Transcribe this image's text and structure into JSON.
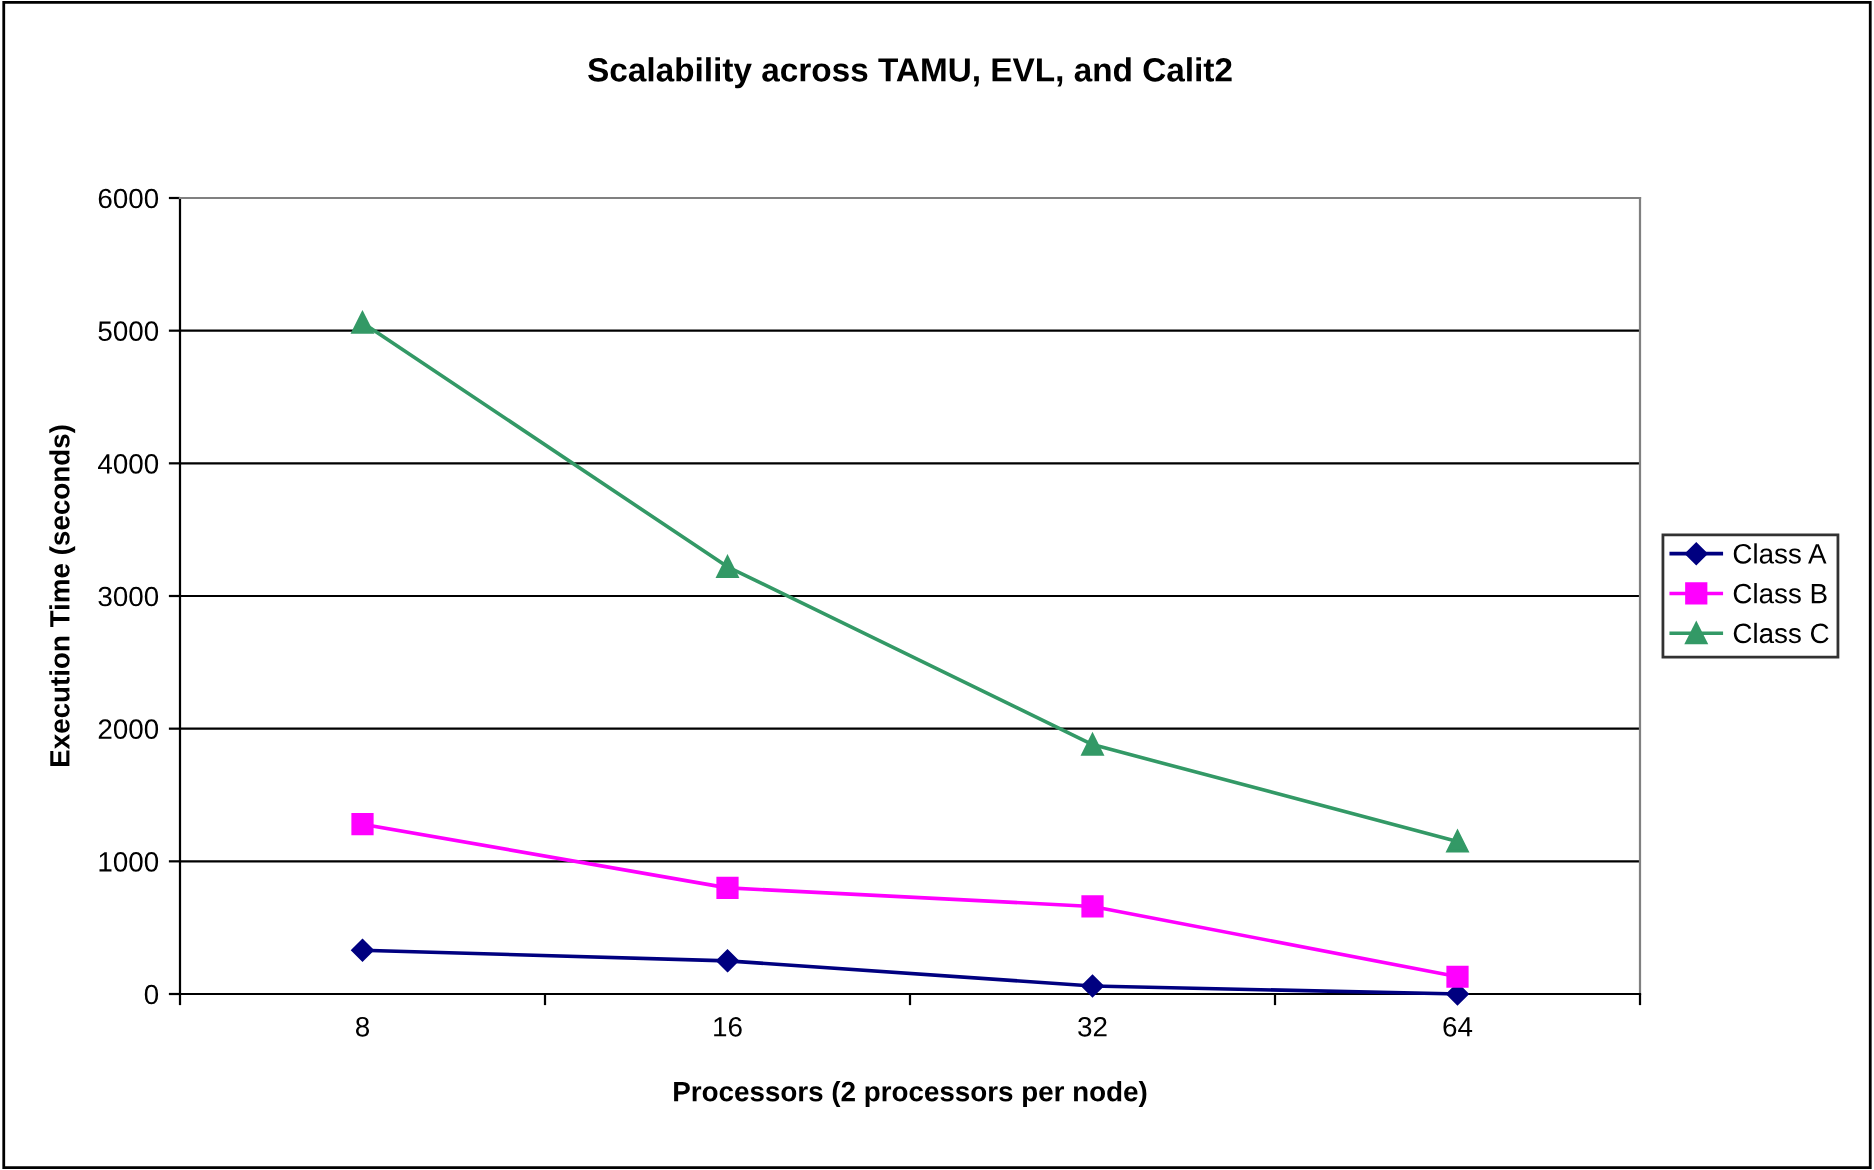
{
  "chart_data": {
    "type": "line",
    "title": "Scalability across TAMU, EVL, and Calit2",
    "xlabel": "Processors (2 processors per node)",
    "ylabel": "Execution Time (seconds)",
    "categories": [
      "8",
      "16",
      "32",
      "64"
    ],
    "series": [
      {
        "name": "Class A",
        "color": "#000080",
        "marker": "diamond",
        "values": [
          330,
          250,
          60,
          0
        ]
      },
      {
        "name": "Class B",
        "color": "#ff00ff",
        "marker": "square",
        "values": [
          1280,
          800,
          660,
          130
        ]
      },
      {
        "name": "Class C",
        "color": "#339966",
        "marker": "triangle",
        "values": [
          5060,
          3220,
          1880,
          1150
        ]
      }
    ],
    "ylim": [
      0,
      6000
    ],
    "yticks": [
      0,
      1000,
      2000,
      3000,
      4000,
      5000,
      6000
    ],
    "grid": "y",
    "legend": "right"
  }
}
